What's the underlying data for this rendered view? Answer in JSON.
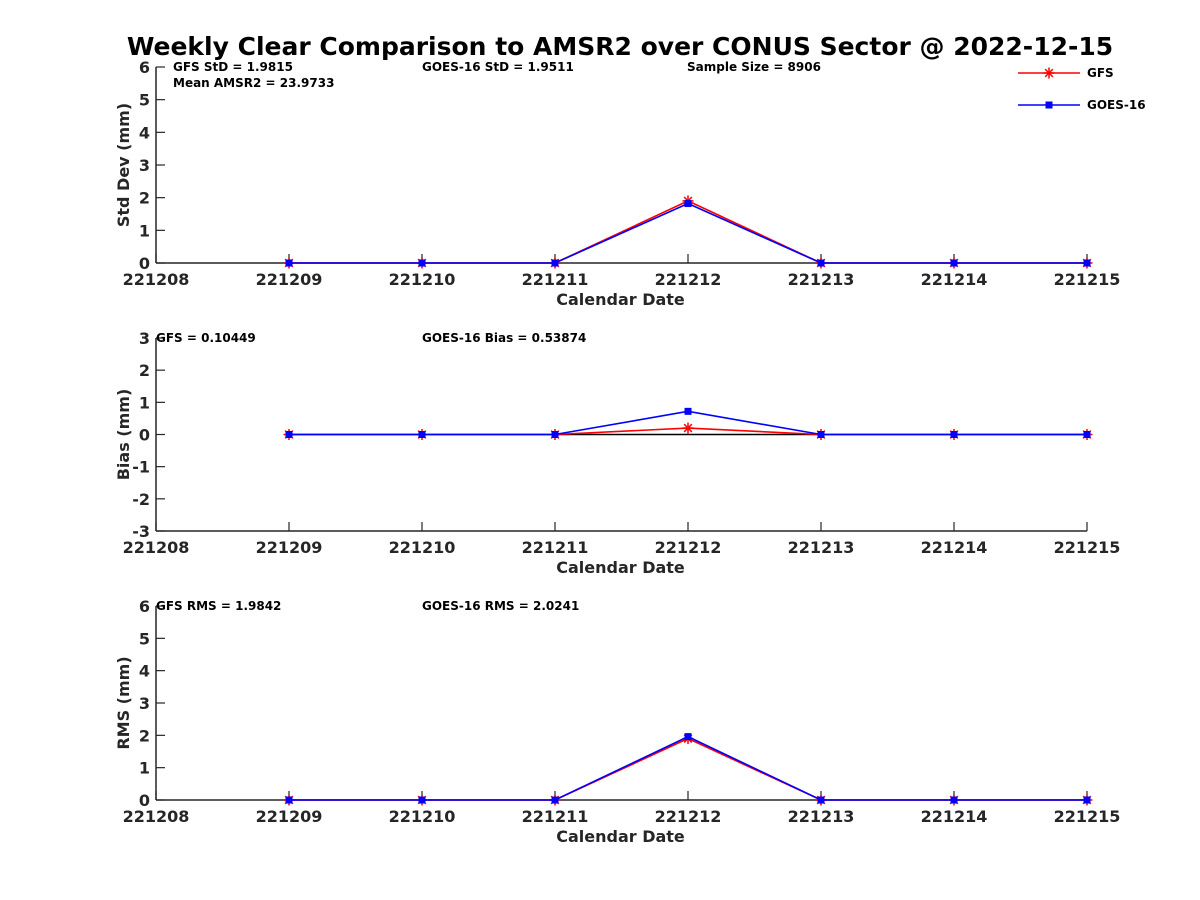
{
  "figure": {
    "title": "Weekly Clear Comparison to AMSR2 over CONUS Sector @ 2022-12-15"
  },
  "legend": {
    "placement": "top-right",
    "items": [
      {
        "label": "GFS",
        "color": "#ff0000",
        "marker": "asterisk"
      },
      {
        "label": "GOES-16",
        "color": "#0000ff",
        "marker": "square"
      }
    ]
  },
  "colors": {
    "gfs": "#ff0000",
    "goes16": "#0000ff",
    "axes": "#262626",
    "zero_line": "#000000"
  },
  "chart_data": [
    {
      "type": "line",
      "x": [
        "221208",
        "221209",
        "221210",
        "221211",
        "221212",
        "221213",
        "221214",
        "221215"
      ],
      "xlabel": "Calendar Date",
      "ylabel": "Std Dev (mm)",
      "ylim": [
        0,
        6
      ],
      "yticks": [
        0,
        1,
        2,
        3,
        4,
        5,
        6
      ],
      "grid": false,
      "zero_line": false,
      "annotations": [
        {
          "id": "gfs-std",
          "text": "GFS StD = 1.9815"
        },
        {
          "id": "goes-std",
          "text": "GOES-16 StD = 1.9511"
        },
        {
          "id": "sample-size",
          "text": "Sample Size = 8906"
        },
        {
          "id": "mean-amsr2",
          "text": "Mean AMSR2 = 23.9733"
        }
      ],
      "series": [
        {
          "name": "GFS",
          "color": "#ff0000",
          "marker": "asterisk",
          "x": [
            "221209",
            "221210",
            "221211",
            "221212",
            "221213",
            "221214",
            "221215"
          ],
          "values": [
            0,
            0,
            0,
            1.9,
            0,
            0,
            0
          ]
        },
        {
          "name": "GOES-16",
          "color": "#0000ff",
          "marker": "square",
          "x": [
            "221209",
            "221210",
            "221211",
            "221212",
            "221213",
            "221214",
            "221215"
          ],
          "values": [
            0,
            0,
            0,
            1.82,
            0,
            0,
            0
          ]
        }
      ]
    },
    {
      "type": "line",
      "x": [
        "221208",
        "221209",
        "221210",
        "221211",
        "221212",
        "221213",
        "221214",
        "221215"
      ],
      "xlabel": "Calendar Date",
      "ylabel": "Bias (mm)",
      "ylim": [
        -3,
        3
      ],
      "yticks": [
        -3,
        -2,
        -1,
        0,
        1,
        2,
        3
      ],
      "grid": false,
      "zero_line": true,
      "annotations": [
        {
          "id": "gfs-bias",
          "text": "GFS = 0.10449"
        },
        {
          "id": "goes-bias",
          "text": "GOES-16 Bias  = 0.53874"
        }
      ],
      "series": [
        {
          "name": "GFS",
          "color": "#ff0000",
          "marker": "asterisk",
          "x": [
            "221209",
            "221210",
            "221211",
            "221212",
            "221213",
            "221214",
            "221215"
          ],
          "values": [
            0,
            0,
            0,
            0.2,
            0,
            0,
            0
          ]
        },
        {
          "name": "GOES-16",
          "color": "#0000ff",
          "marker": "square",
          "x": [
            "221209",
            "221210",
            "221211",
            "221212",
            "221213",
            "221214",
            "221215"
          ],
          "values": [
            0,
            0,
            0,
            0.72,
            0,
            0,
            0
          ]
        }
      ]
    },
    {
      "type": "line",
      "x": [
        "221208",
        "221209",
        "221210",
        "221211",
        "221212",
        "221213",
        "221214",
        "221215"
      ],
      "xlabel": "Calendar Date",
      "ylabel": "RMS (mm)",
      "ylim": [
        0,
        6
      ],
      "yticks": [
        0,
        1,
        2,
        3,
        4,
        5,
        6
      ],
      "grid": false,
      "zero_line": false,
      "annotations": [
        {
          "id": "gfs-rms",
          "text": "GFS RMS = 1.9842"
        },
        {
          "id": "goes-rms",
          "text": "GOES-16 RMS = 2.0241"
        }
      ],
      "series": [
        {
          "name": "GFS",
          "color": "#ff0000",
          "marker": "asterisk",
          "x": [
            "221209",
            "221210",
            "221211",
            "221212",
            "221213",
            "221214",
            "221215"
          ],
          "values": [
            0,
            0,
            0,
            1.9,
            0,
            0,
            0
          ]
        },
        {
          "name": "GOES-16",
          "color": "#0000ff",
          "marker": "square",
          "x": [
            "221209",
            "221210",
            "221211",
            "221212",
            "221213",
            "221214",
            "221215"
          ],
          "values": [
            0,
            0,
            0,
            1.96,
            0,
            0,
            0
          ]
        }
      ]
    }
  ]
}
